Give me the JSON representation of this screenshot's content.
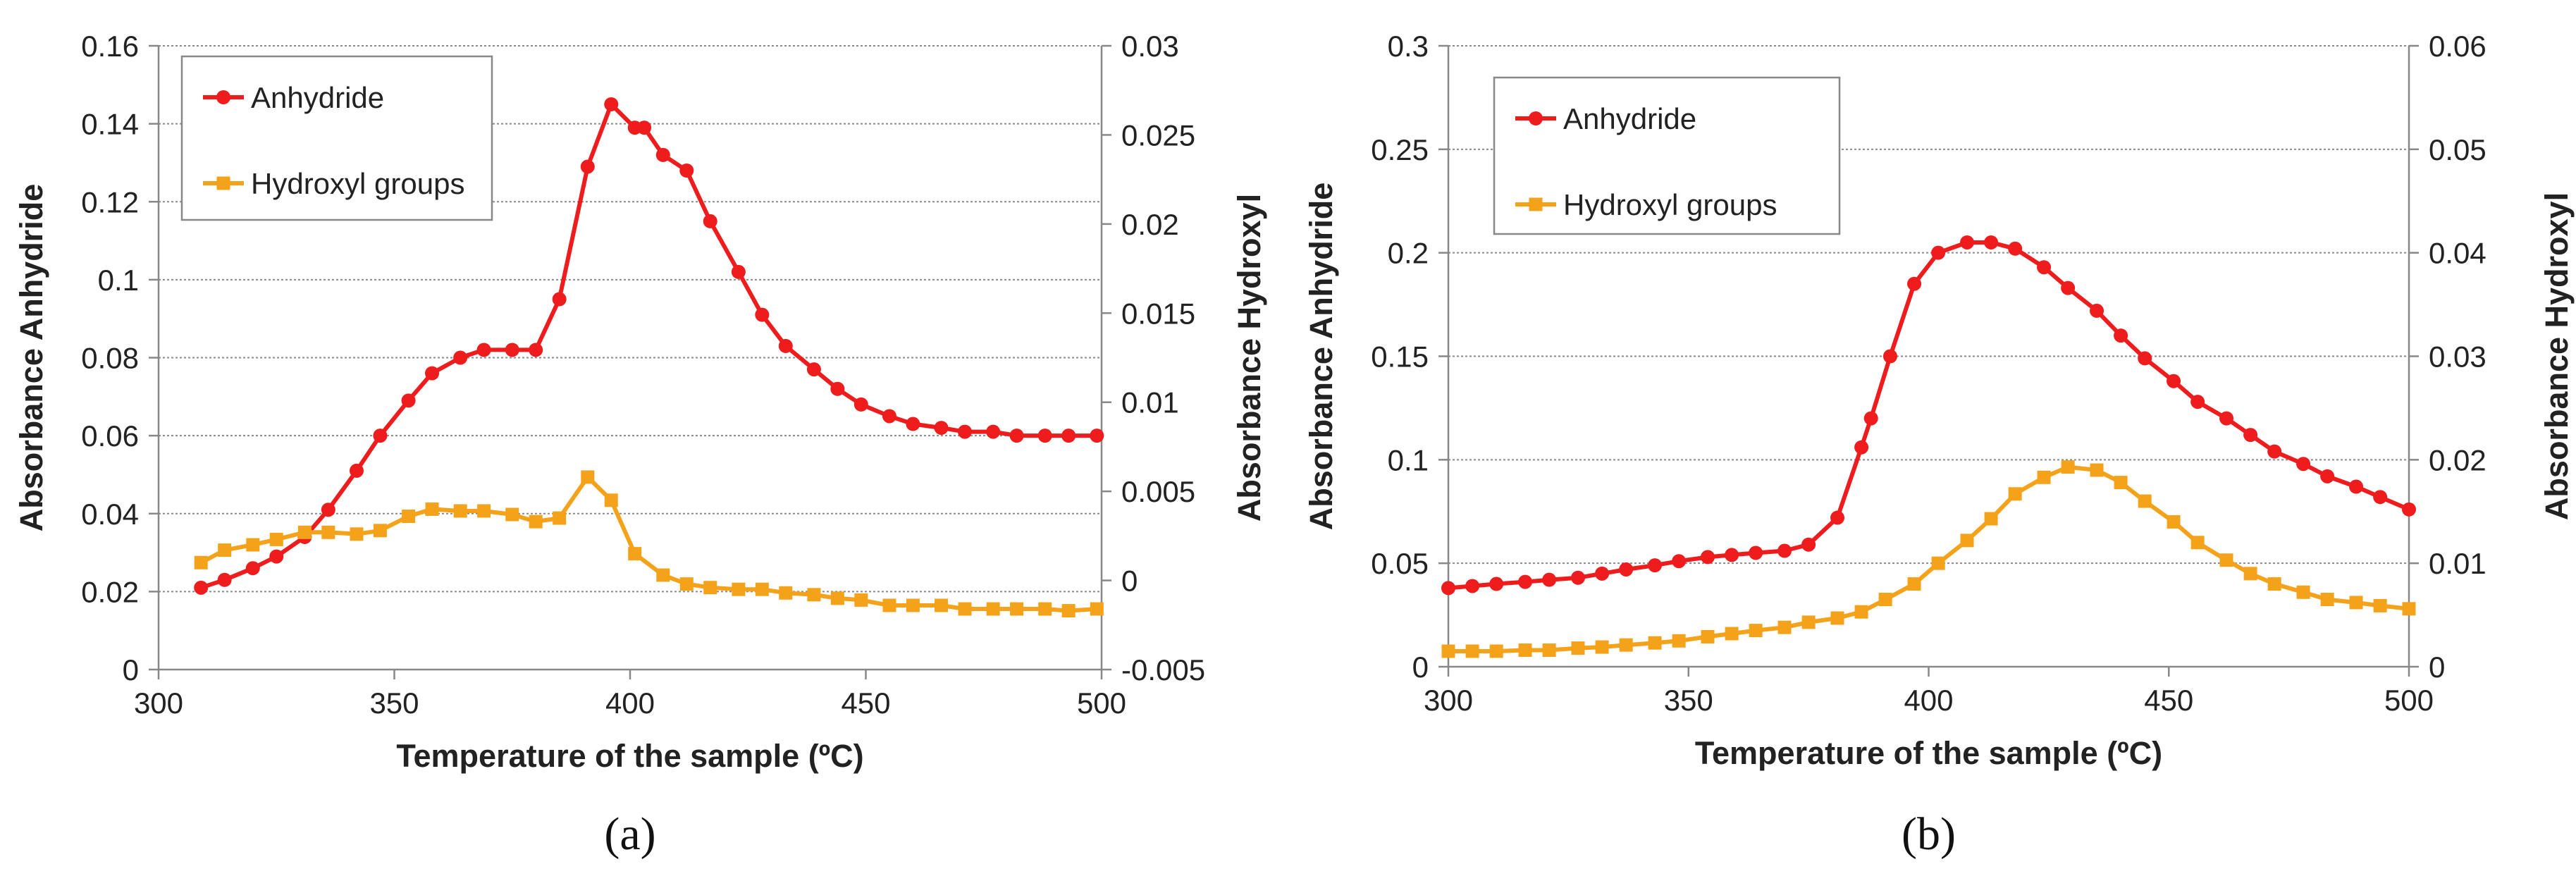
{
  "chart_data": [
    {
      "type": "line",
      "panel_label": "(a)",
      "xlabel": "Temperature of the sample (ºC)",
      "ylabel": "Absorbance Anhydride",
      "y2label": "Absorbance Hydroxyl",
      "xlim": [
        300,
        500
      ],
      "ylim": [
        0,
        0.16
      ],
      "y2lim": [
        -0.005,
        0.03
      ],
      "xticks": [
        300,
        350,
        400,
        450,
        500
      ],
      "yticks": [
        0,
        0.02,
        0.04,
        0.06,
        0.08,
        0.1,
        0.12,
        0.14,
        0.16
      ],
      "y2ticks": [
        -0.005,
        0,
        0.005,
        0.01,
        0.015,
        0.02,
        0.025,
        0.03
      ],
      "grid": "horizontal",
      "legend": "top-left",
      "series": [
        {
          "name": "Anhydride",
          "axis": "left",
          "color": "#ee1c1c",
          "marker": "circle",
          "x": [
            309,
            314,
            320,
            325,
            331,
            336,
            342,
            347,
            353,
            358,
            364,
            369,
            375,
            380,
            385,
            391,
            396,
            401,
            403,
            407,
            412,
            417,
            423,
            428,
            433,
            439,
            444,
            449,
            455,
            460,
            466,
            471,
            477,
            482,
            488,
            493,
            499
          ],
          "y": [
            0.021,
            0.023,
            0.026,
            0.029,
            0.034,
            0.041,
            0.051,
            0.06,
            0.069,
            0.076,
            0.08,
            0.082,
            0.082,
            0.082,
            0.095,
            0.129,
            0.145,
            0.139,
            0.139,
            0.132,
            0.128,
            0.115,
            0.102,
            0.091,
            0.083,
            0.077,
            0.072,
            0.068,
            0.065,
            0.063,
            0.062,
            0.061,
            0.061,
            0.06,
            0.06,
            0.06,
            0.06
          ]
        },
        {
          "name": "Hydroxyl groups",
          "axis": "right",
          "color": "#f5a21b",
          "marker": "square",
          "x": [
            309,
            314,
            320,
            325,
            331,
            336,
            342,
            347,
            353,
            358,
            364,
            369,
            375,
            380,
            385,
            391,
            396,
            401,
            407,
            412,
            417,
            423,
            428,
            433,
            439,
            444,
            449,
            455,
            460,
            466,
            471,
            477,
            482,
            488,
            493,
            499
          ],
          "y": [
            0.001,
            0.0017,
            0.002,
            0.0023,
            0.0027,
            0.0027,
            0.0026,
            0.0028,
            0.0036,
            0.004,
            0.0039,
            0.0039,
            0.0037,
            0.0033,
            0.0035,
            0.0058,
            0.0045,
            0.0015,
            0.0003,
            -0.0002,
            -0.0004,
            -0.0005,
            -0.0005,
            -0.0007,
            -0.0008,
            -0.001,
            -0.0011,
            -0.0014,
            -0.0014,
            -0.0014,
            -0.0016,
            -0.0016,
            -0.0016,
            -0.0016,
            -0.0017,
            -0.0016
          ]
        }
      ]
    },
    {
      "type": "line",
      "panel_label": "(b)",
      "xlabel": "Temperature of the sample (ºC)",
      "ylabel": "Absorbance Anhydride",
      "y2label": "Absorbance Hydroxyl",
      "xlim": [
        300,
        500
      ],
      "ylim": [
        0,
        0.3
      ],
      "y2lim": [
        0,
        0.06
      ],
      "xticks": [
        300,
        350,
        400,
        450,
        500
      ],
      "yticks": [
        0,
        0.05,
        0.1,
        0.15,
        0.2,
        0.25,
        0.3
      ],
      "y2ticks": [
        0,
        0.01,
        0.02,
        0.03,
        0.04,
        0.05,
        0.06
      ],
      "grid": "horizontal",
      "legend": "top-left",
      "series": [
        {
          "name": "Anhydride",
          "axis": "left",
          "color": "#ee1c1c",
          "marker": "circle",
          "x": [
            300,
            305,
            310,
            316,
            321,
            327,
            332,
            337,
            343,
            348,
            354,
            359,
            364,
            370,
            375,
            381,
            386,
            388,
            392,
            397,
            402,
            408,
            413,
            418,
            424,
            429,
            435,
            440,
            445,
            451,
            456,
            462,
            467,
            472,
            478,
            483,
            489,
            494,
            500
          ],
          "y": [
            0.038,
            0.039,
            0.04,
            0.041,
            0.042,
            0.043,
            0.045,
            0.047,
            0.049,
            0.051,
            0.053,
            0.054,
            0.055,
            0.056,
            0.059,
            0.072,
            0.106,
            0.12,
            0.15,
            0.185,
            0.2,
            0.205,
            0.205,
            0.202,
            0.193,
            0.183,
            0.172,
            0.16,
            0.149,
            0.138,
            0.128,
            0.12,
            0.112,
            0.104,
            0.098,
            0.092,
            0.087,
            0.082,
            0.076
          ]
        },
        {
          "name": "Hydroxyl groups",
          "axis": "right",
          "color": "#f5a21b",
          "marker": "square",
          "x": [
            300,
            305,
            310,
            316,
            321,
            327,
            332,
            337,
            343,
            348,
            354,
            359,
            364,
            370,
            375,
            381,
            386,
            391,
            397,
            402,
            408,
            413,
            418,
            424,
            429,
            435,
            440,
            445,
            451,
            456,
            462,
            467,
            472,
            478,
            483,
            489,
            494,
            500
          ],
          "y": [
            0.0015,
            0.0015,
            0.0015,
            0.0016,
            0.0016,
            0.0018,
            0.0019,
            0.0021,
            0.0023,
            0.0025,
            0.0029,
            0.0032,
            0.0035,
            0.0038,
            0.0043,
            0.0047,
            0.0053,
            0.0065,
            0.008,
            0.01,
            0.0122,
            0.0143,
            0.0167,
            0.0183,
            0.0193,
            0.019,
            0.0178,
            0.016,
            0.014,
            0.012,
            0.0103,
            0.009,
            0.008,
            0.0072,
            0.0065,
            0.0062,
            0.0059,
            0.0056
          ]
        }
      ]
    }
  ]
}
